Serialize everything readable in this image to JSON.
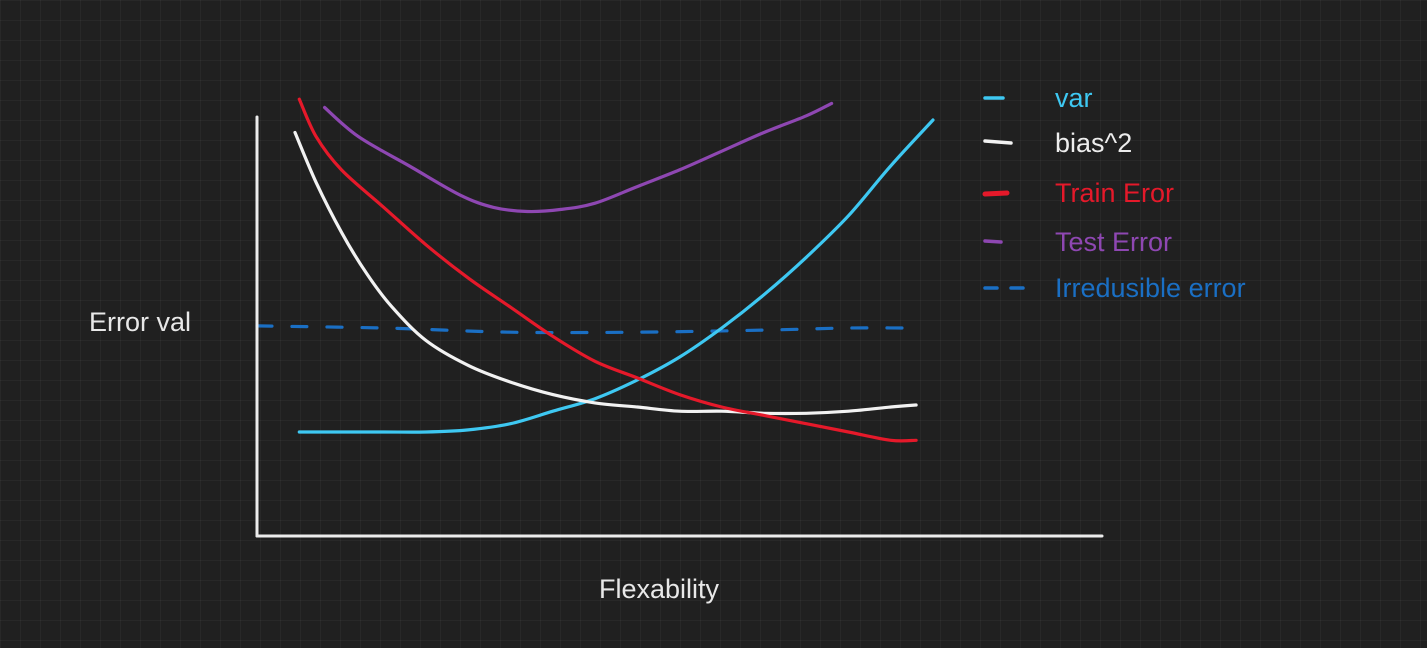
{
  "chart_data": {
    "type": "line",
    "title": "",
    "xlabel": "Flexability",
    "ylabel": "Error val",
    "xlim": [
      0,
      100
    ],
    "ylim": [
      0,
      100
    ],
    "grid": false,
    "legend_position": "top-right",
    "series": [
      {
        "name": "var",
        "color": "#3ec8f2",
        "style": "solid",
        "points": [
          [
            5,
            25
          ],
          [
            10,
            25
          ],
          [
            15,
            25
          ],
          [
            20,
            25
          ],
          [
            25,
            25.5
          ],
          [
            30,
            27
          ],
          [
            35,
            30
          ],
          [
            40,
            33
          ],
          [
            45,
            37.5
          ],
          [
            50,
            43
          ],
          [
            55,
            50
          ],
          [
            60,
            58
          ],
          [
            65,
            67
          ],
          [
            70,
            77
          ],
          [
            75,
            89
          ],
          [
            80,
            100
          ]
        ]
      },
      {
        "name": "bias^2",
        "color": "#f2f2f2",
        "style": "solid",
        "points": [
          [
            4.5,
            97
          ],
          [
            7,
            85
          ],
          [
            10,
            73
          ],
          [
            13,
            63
          ],
          [
            16,
            55
          ],
          [
            20,
            47
          ],
          [
            25,
            41
          ],
          [
            30,
            37
          ],
          [
            35,
            34
          ],
          [
            40,
            32
          ],
          [
            45,
            31
          ],
          [
            50,
            30
          ],
          [
            55,
            30
          ],
          [
            60,
            29.5
          ],
          [
            65,
            29.5
          ],
          [
            70,
            30
          ],
          [
            75,
            31
          ],
          [
            78,
            31.5
          ]
        ]
      },
      {
        "name": "Train Eror",
        "color": "#e5192a",
        "style": "solid",
        "points": [
          [
            5,
            105
          ],
          [
            7,
            96
          ],
          [
            10,
            88
          ],
          [
            15,
            79
          ],
          [
            20,
            70
          ],
          [
            25,
            62
          ],
          [
            30,
            55
          ],
          [
            35,
            48
          ],
          [
            40,
            42
          ],
          [
            45,
            38
          ],
          [
            50,
            34
          ],
          [
            55,
            31
          ],
          [
            60,
            29
          ],
          [
            65,
            27
          ],
          [
            70,
            25
          ],
          [
            75,
            23
          ],
          [
            78,
            23
          ]
        ]
      },
      {
        "name": "Test Error",
        "color": "#8e47b2",
        "style": "solid",
        "points": [
          [
            8,
            103
          ],
          [
            12,
            96
          ],
          [
            18,
            89
          ],
          [
            24,
            82
          ],
          [
            28,
            79
          ],
          [
            32,
            78
          ],
          [
            36,
            78.5
          ],
          [
            40,
            80
          ],
          [
            45,
            84
          ],
          [
            50,
            88
          ],
          [
            55,
            92.5
          ],
          [
            60,
            97
          ],
          [
            65,
            101
          ],
          [
            68,
            104
          ]
        ]
      },
      {
        "name": "Irredusible error",
        "color": "#1a6fc4",
        "style": "dashed",
        "points": [
          [
            0,
            50.5
          ],
          [
            15,
            50
          ],
          [
            30,
            49
          ],
          [
            45,
            49
          ],
          [
            60,
            49.5
          ],
          [
            70,
            50
          ],
          [
            77,
            50
          ]
        ]
      }
    ]
  }
}
